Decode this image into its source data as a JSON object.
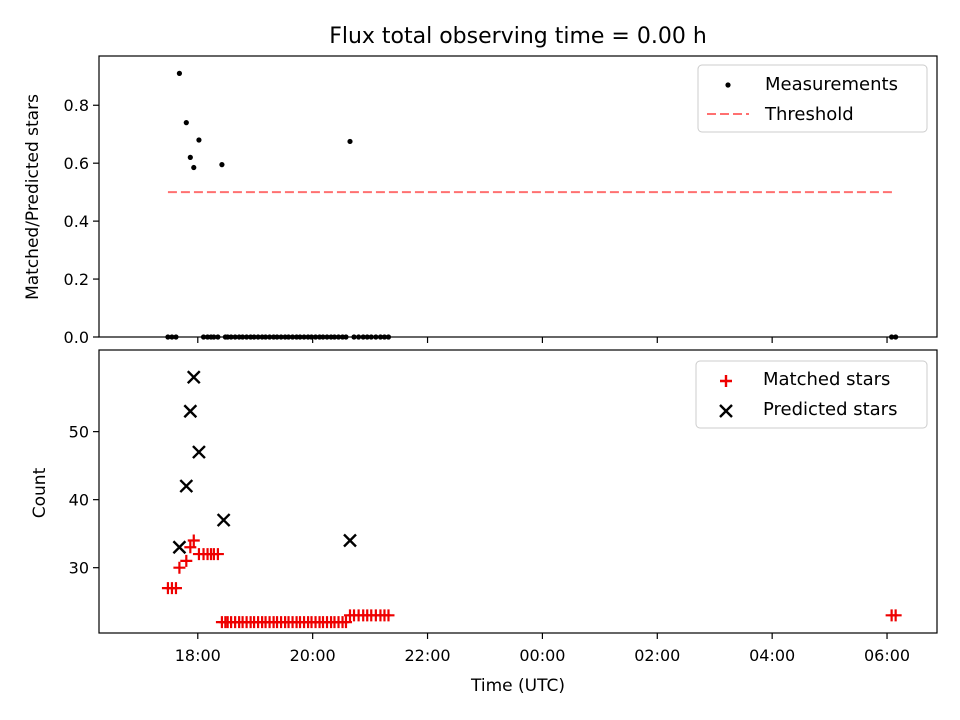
{
  "title": "Flux total observing time = 0.00 h",
  "colors": {
    "measurement": "#000000",
    "threshold": "#ff7070",
    "matched": "#ee0000",
    "predicted": "#000000",
    "axes": "#000000"
  },
  "chart_data": [
    {
      "type": "scatter",
      "panel": "top",
      "ylabel": "Matched/Predicted stars",
      "xlabel": "",
      "x_unit": "hours since 17:00 UTC",
      "xlim": [
        -0.72,
        13.87
      ],
      "ylim": [
        0.0,
        0.97
      ],
      "yticks": [
        0.0,
        0.2,
        0.4,
        0.6,
        0.8
      ],
      "ytick_labels": [
        "0.0",
        "0.2",
        "0.4",
        "0.6",
        "0.8"
      ],
      "legend_position": "top-right",
      "legend": [
        "Measurements",
        "Threshold"
      ],
      "threshold": {
        "name": "Threshold",
        "value": 0.5,
        "x_range": [
          0.48,
          13.12
        ],
        "style": "dashed"
      },
      "series": [
        {
          "name": "Measurements",
          "marker": "dot",
          "x": [
            0.48,
            0.55,
            0.62,
            0.68,
            0.8,
            0.87,
            0.93,
            1.02,
            1.1,
            1.17,
            1.23,
            1.28,
            1.35,
            1.42,
            1.48,
            1.52,
            1.58,
            1.65,
            1.72,
            1.78,
            1.85,
            1.92,
            1.98,
            2.05,
            2.12,
            2.18,
            2.25,
            2.32,
            2.38,
            2.45,
            2.52,
            2.58,
            2.65,
            2.72,
            2.78,
            2.85,
            2.92,
            2.98,
            3.05,
            3.12,
            3.18,
            3.25,
            3.32,
            3.38,
            3.45,
            3.52,
            3.58,
            3.65,
            3.72,
            3.8,
            3.88,
            3.95,
            4.02,
            4.1,
            4.18,
            4.25,
            4.32,
            13.08,
            13.15
          ],
          "y": [
            0.0,
            0.0,
            0.0,
            0.91,
            0.74,
            0.62,
            0.585,
            0.68,
            0.0,
            0.0,
            0.0,
            0.0,
            0.0,
            0.595,
            0.0,
            0.0,
            0.0,
            0.0,
            0.0,
            0.0,
            0.0,
            0.0,
            0.0,
            0.0,
            0.0,
            0.0,
            0.0,
            0.0,
            0.0,
            0.0,
            0.0,
            0.0,
            0.0,
            0.0,
            0.0,
            0.0,
            0.0,
            0.0,
            0.0,
            0.0,
            0.0,
            0.0,
            0.0,
            0.0,
            0.0,
            0.0,
            0.0,
            0.675,
            0.0,
            0.0,
            0.0,
            0.0,
            0.0,
            0.0,
            0.0,
            0.0,
            0.0,
            0.0,
            0.0
          ]
        }
      ]
    },
    {
      "type": "scatter",
      "panel": "bottom",
      "ylabel": "Count",
      "xlabel": "Time (UTC)",
      "x_unit": "hours since 17:00 UTC",
      "xlim": [
        -0.72,
        13.87
      ],
      "ylim": [
        20.4,
        62.0
      ],
      "yticks": [
        30,
        40,
        50
      ],
      "ytick_labels": [
        "30",
        "40",
        "50"
      ],
      "xticks": [
        1,
        3,
        5,
        7,
        9,
        11,
        13
      ],
      "xtick_labels": [
        "18:00",
        "20:00",
        "22:00",
        "00:00",
        "02:00",
        "04:00",
        "06:00"
      ],
      "legend_position": "top-right",
      "legend": [
        "Matched stars",
        "Predicted stars"
      ],
      "series": [
        {
          "name": "Matched stars",
          "marker": "plus",
          "x": [
            0.48,
            0.55,
            0.62,
            0.68,
            0.8,
            0.87,
            0.93,
            1.02,
            1.1,
            1.17,
            1.23,
            1.28,
            1.35,
            1.42,
            1.48,
            1.52,
            1.58,
            1.65,
            1.72,
            1.78,
            1.85,
            1.92,
            1.98,
            2.05,
            2.12,
            2.18,
            2.25,
            2.32,
            2.38,
            2.45,
            2.52,
            2.58,
            2.65,
            2.72,
            2.78,
            2.85,
            2.92,
            2.98,
            3.05,
            3.12,
            3.18,
            3.25,
            3.32,
            3.38,
            3.45,
            3.52,
            3.58,
            3.65,
            3.72,
            3.8,
            3.88,
            3.95,
            4.02,
            4.1,
            4.18,
            4.25,
            4.32,
            13.08,
            13.15
          ],
          "y": [
            27,
            27,
            27,
            30,
            31,
            33,
            34,
            32,
            32,
            32,
            32,
            32,
            32,
            22,
            22,
            22,
            22,
            22,
            22,
            22,
            22,
            22,
            22,
            22,
            22,
            22,
            22,
            22,
            22,
            22,
            22,
            22,
            22,
            22,
            22,
            22,
            22,
            22,
            22,
            22,
            22,
            22,
            22,
            22,
            22,
            22,
            22,
            23,
            23,
            23,
            23,
            23,
            23,
            23,
            23,
            23,
            23,
            23,
            23
          ]
        },
        {
          "name": "Predicted stars",
          "marker": "cross",
          "x": [
            0.68,
            0.8,
            0.87,
            0.93,
            1.02,
            1.45,
            3.65
          ],
          "y": [
            33,
            42,
            53,
            58,
            47,
            37,
            34
          ]
        }
      ]
    }
  ]
}
